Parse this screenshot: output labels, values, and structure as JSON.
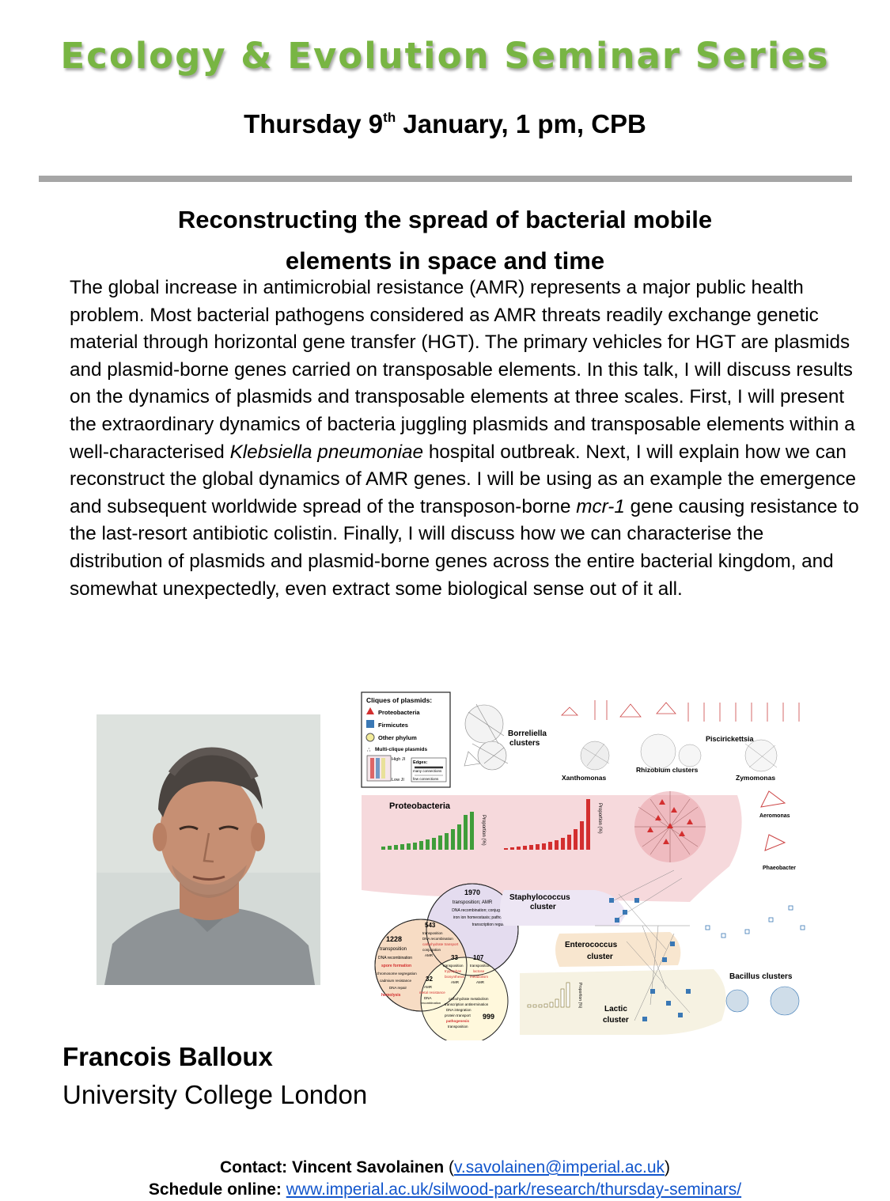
{
  "header": {
    "series_title": "Ecology & Evolution Seminar Series",
    "date_day": "Thursday 9",
    "date_suffix": "th",
    "date_rest": " January, 1 pm, CPB"
  },
  "talk": {
    "title_line1": "Reconstructing the spread of bacterial mobile",
    "title_line2": "elements in space and time",
    "abstract_part1": "The global increase in antimicrobial resistance (AMR) represents a major public health problem. Most bacterial pathogens considered as AMR threats readily exchange genetic material through horizontal gene transfer (HGT). The primary vehicles for HGT are plasmids and plasmid-borne genes carried on transposable elements. In this talk, I will discuss results on the dynamics of plasmids and transposable elements at three scales. First, I will present the extraordinary dynamics of bacteria juggling plasmids and transposable elements within a well-characterised ",
    "abstract_italic1": "Klebsiella pneumoniae",
    "abstract_part2": " hospital outbreak. Next, I will explain how we can reconstruct the global dynamics of AMR genes. I will be using as an example the emergence and subsequent worldwide spread of the transposon-borne ",
    "abstract_italic2": "mcr-1",
    "abstract_part3": " gene causing resistance to the last-resort antibiotic colistin. Finally, I will discuss how we can characterise the distribution of plasmids and plasmid-borne genes across the entire bacterial kingdom, and somewhat unexpectedly, even extract some biological sense out of it all."
  },
  "figure": {
    "legend_title": "Cliques of plasmids:",
    "legend_items": [
      "Proteobacteria",
      "Firmicutes",
      "Other phylum",
      "Multi-clique plasmids"
    ],
    "legend_high": "High JI",
    "legend_low": "Low JI",
    "legend_edges": "Edges:",
    "legend_many": "many connections",
    "legend_few": "few connections",
    "cluster_labels": {
      "borreliella": "Borreliella",
      "borreliella2": "clusters",
      "piscirickettsia": "Piscirickettsia",
      "xanthomonas": "Xanthomonas",
      "rhizobium": "Rhizobium clusters",
      "zymomonas": "Zymomonas",
      "proteobacteria": "Proteobacteria",
      "aeromonas": "Aeromonas",
      "phaeobacter": "Phaeobacter",
      "staph": "Staphylococcus",
      "staph2": "cluster",
      "entero": "Enterococcus",
      "entero2": "cluster",
      "bacillus": "Bacillus clusters",
      "lactic": "Lactic",
      "lactic2": "cluster",
      "proportion": "Proportion (%)"
    },
    "venn": {
      "top_num": "1970",
      "top_text1": "transposition; AMR",
      "top_text2": "DNA recombination; conjugation",
      "top_text3": "iron ion homeostasis; pathogenesis",
      "top_text4": "transcription regulation",
      "left_num": "1228",
      "left_text1": "transposition",
      "left_text2": "DNA recombination",
      "left_text3": "spore formation",
      "left_text4": "chromosome segregation",
      "left_text5": "cadmium resistance",
      "left_text6": "DNA repair",
      "left_text7": "hemolysis",
      "n543": "543",
      "n543_text1": "transposition",
      "n543_text2": "DNA recombination",
      "n543_text3": "carbohydrate transport",
      "n543_text4": "conjugation",
      "n543_text5": "AMR",
      "n33": "33",
      "n33_text1": "transposition",
      "n33_text2": "tryptophan",
      "n33_text3": "biosynthesis",
      "n33_text4": "AMR",
      "n107": "107",
      "n107_text1": "transposition",
      "n107_text2": "lactose",
      "n107_text3": "metabolism",
      "n107_text4": "AMR",
      "n32": "32",
      "n32_text1": "AMR",
      "n32_text2": "metal resistance",
      "n32_text3": "DNA",
      "n32_text4": "recombination",
      "n999": "999",
      "n999_text1": "carbohydrate metabolism",
      "n999_text2": "transcription antitermination",
      "n999_text3": "DNA integration",
      "n999_text4": "protein transport",
      "n999_text5": "pathogenesis",
      "n999_text6": "transposition"
    }
  },
  "speaker": {
    "name": "Francois Balloux",
    "affiliation": "University College London"
  },
  "footer": {
    "contact_label": "Contact: Vincent Savolainen",
    "contact_open": " (",
    "contact_email": "v.savolainen@imperial.ac.uk",
    "contact_close": ")",
    "schedule_label": "Schedule online:",
    "schedule_url": "www.imperial.ac.uk/silwood-park/research/thursday-seminars/"
  },
  "colors": {
    "title_green": "#78b543",
    "rule_gray": "#a6a6a6",
    "link_blue": "#1155cc",
    "proteo_red": "#d32f2f",
    "firmicutes_blue": "#3a78b5",
    "bar_green": "#3f9d3a",
    "other_yellow": "#f3ec9a"
  }
}
